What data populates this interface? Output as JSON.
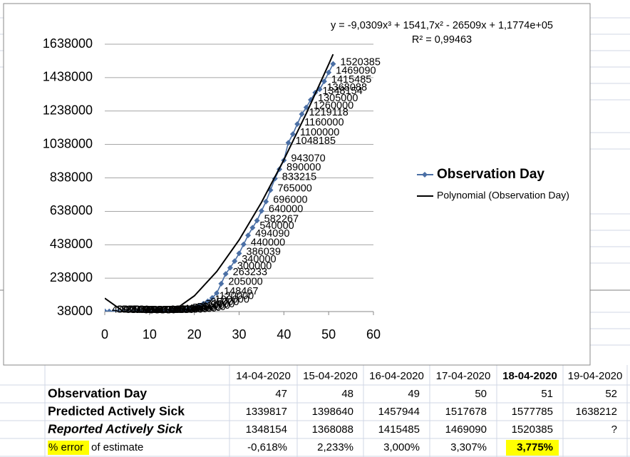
{
  "chart_data": {
    "type": "scatter",
    "equation": "y = -9,0309x³ + 1541,7x² - 26509x + 1,1774e+05",
    "r_squared": "R² = 0,99463",
    "series": [
      {
        "name": "Observation Day",
        "color": "#4a6fa5",
        "marker": "diamond",
        "labels": true,
        "x": [
          0,
          1,
          2,
          3,
          4,
          5,
          6,
          7,
          8,
          9,
          10,
          11,
          12,
          13,
          14,
          15,
          16,
          17,
          18,
          19,
          20,
          21,
          22,
          23,
          24,
          25,
          26,
          27,
          28,
          29,
          30,
          31,
          32,
          33,
          34,
          35,
          36,
          37,
          38,
          39,
          40,
          41,
          42,
          43,
          44,
          45,
          46,
          47,
          48,
          49,
          50,
          51
        ],
        "values": [
          40000,
          39000,
          38500,
          38000,
          37500,
          37000,
          36500,
          36000,
          36000,
          36500,
          37000,
          37500,
          38000,
          38500,
          39000,
          41000,
          43000,
          46000,
          50000,
          55000,
          62000,
          72000,
          85000,
          100000,
          120000,
          148467,
          205000,
          263233,
          300000,
          340000,
          386039,
          440000,
          494090,
          540000,
          582267,
          640000,
          696000,
          765000,
          833215,
          890000,
          943070,
          1048185,
          1100000,
          1160000,
          1219118,
          1260000,
          1305000,
          1348154,
          1368088,
          1415485,
          1469090,
          1520385
        ]
      },
      {
        "name": "Polynomial (Observation Day)",
        "color": "#000000",
        "marker": "none",
        "labels": false,
        "x": [
          0,
          5,
          10,
          15,
          20,
          25,
          30,
          35,
          40,
          45,
          50,
          51
        ],
        "values": [
          117740,
          22609,
          -2211,
          36508,
          131993,
          277470,
          466166,
          691308,
          946122,
          1223836,
          1517677,
          1577797
        ]
      }
    ],
    "xlim": [
      0,
      60
    ],
    "xticks": [
      0,
      10,
      20,
      30,
      40,
      50,
      60
    ],
    "ylim": [
      38000,
      1638000
    ],
    "yticks": [
      38000,
      238000,
      438000,
      638000,
      838000,
      1038000,
      1238000,
      1438000,
      1638000
    ],
    "grid": true,
    "legend": "right"
  },
  "table": {
    "columns": [
      "14-04-2020",
      "15-04-2020",
      "16-04-2020",
      "17-04-2020",
      "18-04-2020",
      "19-04-2020"
    ],
    "rows": [
      {
        "label": "Observation Day",
        "cells": [
          47,
          48,
          49,
          50,
          51,
          52
        ]
      },
      {
        "label": "Predicted Actively Sick",
        "cells": [
          1339817,
          1398640,
          1457944,
          1517678,
          1577785,
          1638212
        ]
      },
      {
        "label": "Reported Actively Sick",
        "cells": [
          1348154,
          1368088,
          1415485,
          1469090,
          1520385,
          "?"
        ]
      },
      {
        "label": "% error",
        "label_rest": "of estimate",
        "cells": [
          "-0,618%",
          "2,233%",
          "3,000%",
          "3,307%",
          "3,775%"
        ]
      }
    ]
  }
}
